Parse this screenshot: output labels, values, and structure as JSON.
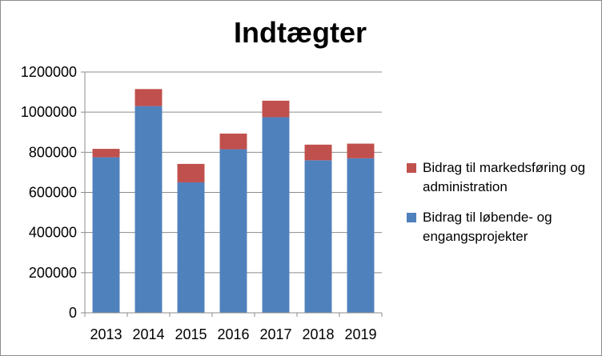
{
  "chart_data": {
    "type": "bar",
    "stacked": true,
    "title": "Indtægter",
    "xlabel": "",
    "ylabel": "",
    "categories": [
      "2013",
      "2014",
      "2015",
      "2016",
      "2017",
      "2018",
      "2019"
    ],
    "ylim": [
      0,
      1200000
    ],
    "yticks": [
      "0",
      "200000",
      "400000",
      "600000",
      "800000",
      "1000000",
      "1200000"
    ],
    "grid": true,
    "legend_position": "right",
    "series": [
      {
        "name": "Bidrag til løbende- og engangsprojekter",
        "color": "#4f81bd",
        "values": [
          775000,
          1030000,
          650000,
          815000,
          975000,
          760000,
          770000
        ]
      },
      {
        "name": "Bidrag til markedsføring og administration",
        "color": "#c0504d",
        "values": [
          42000,
          85000,
          92000,
          78000,
          82000,
          78000,
          73000
        ]
      }
    ]
  }
}
